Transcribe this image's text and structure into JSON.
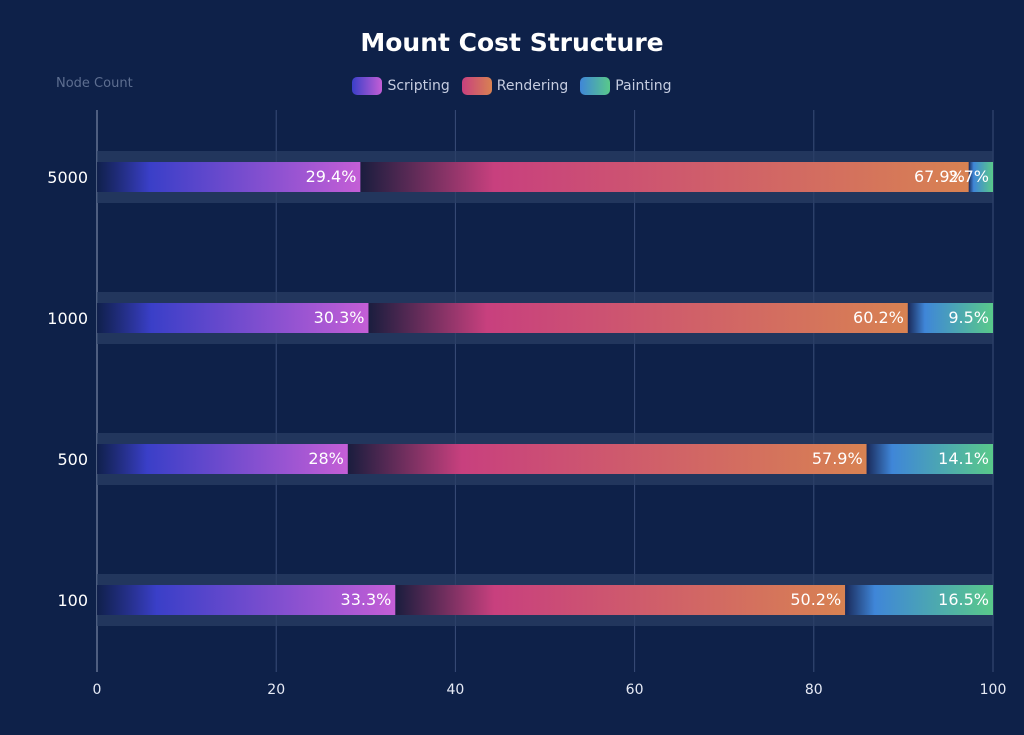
{
  "chart_data": {
    "type": "bar",
    "orientation": "horizontal",
    "stacked": true,
    "title": "Mount Cost Structure",
    "ylabel": "Node Count",
    "xlabel": "",
    "categories": [
      "100",
      "500",
      "1000",
      "5000"
    ],
    "series": [
      {
        "name": "Scripting",
        "values": [
          33.3,
          28,
          30.3,
          29.4
        ],
        "labels": [
          "33.3%",
          "28%",
          "30.3%",
          "29.4%"
        ]
      },
      {
        "name": "Rendering",
        "values": [
          50.2,
          57.9,
          60.2,
          67.9
        ],
        "labels": [
          "50.2%",
          "57.9%",
          "60.2%",
          "67.9%"
        ]
      },
      {
        "name": "Painting",
        "values": [
          16.5,
          14.1,
          9.5,
          2.7
        ],
        "labels": [
          "16.5%",
          "14.1%",
          "9.5%",
          "2.7%"
        ]
      }
    ],
    "xlim": [
      0,
      100
    ],
    "xticks": [
      "0",
      "20",
      "40",
      "60",
      "80",
      "100"
    ],
    "grid": true,
    "legend_position": "top-center"
  },
  "colors": {
    "background": "#0e2149",
    "Scripting": [
      "#3a3fc8",
      "#c45ed6"
    ],
    "Rendering": [
      "#c8407e",
      "#d88252"
    ],
    "Painting": [
      "#3f86d8",
      "#59c98a"
    ]
  }
}
